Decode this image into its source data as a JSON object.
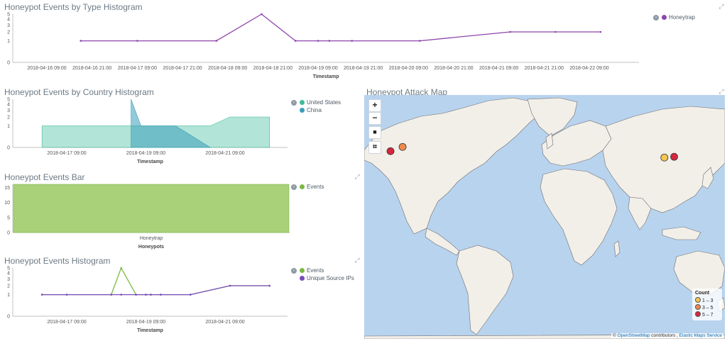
{
  "panels": {
    "type_hist": {
      "title": "Honeypot Events by Type Histogram",
      "xlabel": "Timestamp",
      "yticks": [
        "5",
        "4",
        "3",
        "2",
        "1",
        "0"
      ],
      "xticks": [
        "2018-04-16 09:00",
        "2018-04-16 21:00",
        "2018-04-17 09:00",
        "2018-04-17 21:00",
        "2018-04-18 09:00",
        "2018-04-18 21:00",
        "2018-04-19 09:00",
        "2018-04-19 21:00",
        "2018-04-20 09:00",
        "2018-04-20 21:00",
        "2018-04-21 09:00",
        "2018-04-21 21:00",
        "2018-04-22 09:00"
      ],
      "legend": [
        {
          "label": "Honeytrap",
          "color": "#8e44ad"
        }
      ]
    },
    "country_hist": {
      "title": "Honeypot Events by Country Histogram",
      "xlabel": "Timestamp",
      "yticks": [
        "5",
        "4",
        "3",
        "2",
        "1",
        "0"
      ],
      "xticks": [
        "2018-04-17 09:00",
        "2018-04-19 09:00",
        "2018-04-21 09:00"
      ],
      "legend": [
        {
          "label": "United States",
          "color": "#3ebc9a"
        },
        {
          "label": "China",
          "color": "#3a9fb9"
        }
      ]
    },
    "events_bar": {
      "title": "Honeypot Events Bar",
      "xlabel": "Honeypots",
      "yticks": [
        "15",
        "10",
        "5",
        "0"
      ],
      "xticks": [
        "Honeytrap"
      ],
      "legend": [
        {
          "label": "Events",
          "color": "#7bb843"
        }
      ]
    },
    "events_hist": {
      "title": "Honeypot Events Histogram",
      "xlabel": "Timestamp",
      "yticks": [
        "5",
        "4",
        "3",
        "2",
        "1",
        "0"
      ],
      "xticks": [
        "2018-04-17 09:00",
        "2018-04-19 09:00",
        "2018-04-21 09:00"
      ],
      "legend": [
        {
          "label": "Events",
          "color": "#7bb843"
        },
        {
          "label": "Unique Source IPs",
          "color": "#7c4bbd"
        }
      ]
    },
    "attack_map": {
      "title": "Honeypot Attack Map",
      "controls": {
        "zoom_in": "+",
        "zoom_out": "−",
        "draw": "■",
        "fit": "⌗"
      },
      "legend": {
        "title": "Count",
        "rows": [
          {
            "label": "1 – 3",
            "color": "#f6c64f"
          },
          {
            "label": "3 – 5",
            "color": "#f08a4b"
          },
          {
            "label": "5 – 7",
            "color": "#d7263d"
          }
        ]
      },
      "attribution": {
        "prefix": "©",
        "osm": "OpenStreetMap",
        "mid": "contributors ,",
        "ems": "Elastic Maps Service"
      },
      "points": [
        {
          "lon": -122.4,
          "lat": 37.7,
          "count_band": "5 – 7"
        },
        {
          "lon": -112.0,
          "lat": 40.5,
          "count_band": "3 – 5"
        },
        {
          "lon": 113.0,
          "lat": 33.5,
          "count_band": "1 – 3"
        },
        {
          "lon": 121.4,
          "lat": 34.0,
          "count_band": "5 – 7"
        }
      ]
    }
  },
  "chart_data": [
    {
      "type": "line",
      "title": "Honeypot Events by Type Histogram",
      "xlabel": "Timestamp",
      "ylabel": "",
      "x": [
        "2018-04-16 18:00",
        "2018-04-17 09:00",
        "2018-04-18 06:00",
        "2018-04-18 18:00",
        "2018-04-19 03:00",
        "2018-04-19 09:00",
        "2018-04-19 12:00",
        "2018-04-19 18:00",
        "2018-04-20 12:00",
        "2018-04-21 12:00",
        "2018-04-22 00:00",
        "2018-04-22 12:00"
      ],
      "series": [
        {
          "name": "Honeytrap",
          "values": [
            1,
            1,
            1,
            5,
            1,
            1,
            1,
            1,
            1,
            2,
            2,
            2
          ]
        }
      ],
      "ylim": [
        0,
        5
      ],
      "yscale": "log-like"
    },
    {
      "type": "area",
      "title": "Honeypot Events by Country Histogram",
      "xlabel": "Timestamp",
      "x": [
        "2018-04-16 18:00",
        "2018-04-19 00:00",
        "2018-04-19 06:00",
        "2018-04-20 03:00",
        "2018-04-21 00:00",
        "2018-04-21 12:00",
        "2018-04-22 12:00"
      ],
      "series": [
        {
          "name": "United States",
          "values": [
            1,
            1,
            1,
            1,
            1,
            2,
            2
          ]
        },
        {
          "name": "China",
          "values": [
            0,
            5,
            1,
            1,
            0,
            0,
            0
          ]
        }
      ],
      "ylim": [
        0,
        5
      ]
    },
    {
      "type": "bar",
      "title": "Honeypot Events Bar",
      "xlabel": "Honeypots",
      "categories": [
        "Honeytrap"
      ],
      "series": [
        {
          "name": "Events",
          "values": [
            16
          ]
        }
      ],
      "ylim": [
        0,
        16
      ]
    },
    {
      "type": "line",
      "title": "Honeypot Events Histogram",
      "xlabel": "Timestamp",
      "x": [
        "2018-04-16 18:00",
        "2018-04-17 09:00",
        "2018-04-18 12:00",
        "2018-04-18 18:00",
        "2018-04-19 03:00",
        "2018-04-19 09:00",
        "2018-04-19 12:00",
        "2018-04-19 18:00",
        "2018-04-20 12:00",
        "2018-04-21 12:00",
        "2018-04-22 12:00"
      ],
      "series": [
        {
          "name": "Events",
          "values": [
            1,
            1,
            1,
            5,
            1,
            1,
            1,
            1,
            1,
            2,
            2
          ]
        },
        {
          "name": "Unique Source IPs",
          "values": [
            1,
            1,
            1,
            1,
            1,
            1,
            1,
            1,
            1,
            2,
            2
          ]
        }
      ],
      "ylim": [
        0,
        5
      ]
    }
  ]
}
